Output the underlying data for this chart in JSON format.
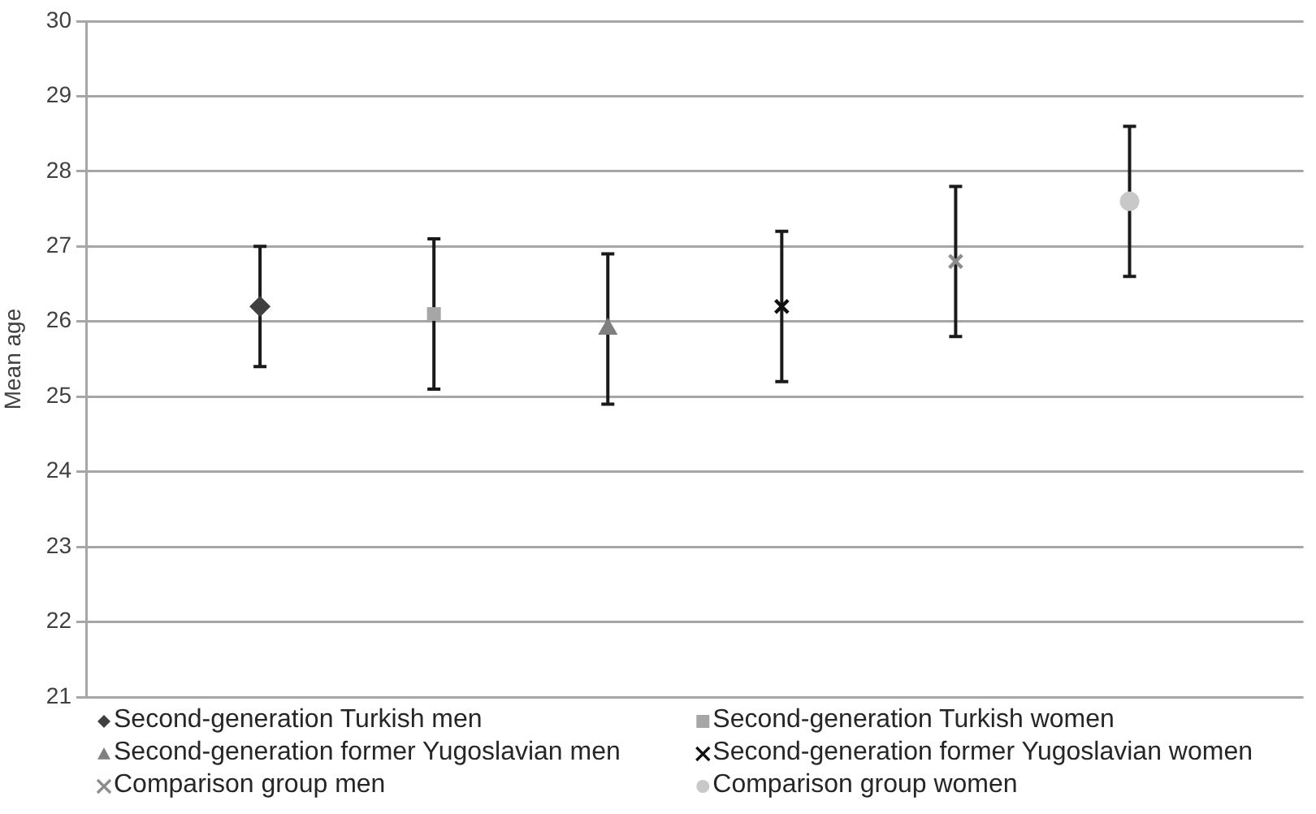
{
  "chart_data": {
    "type": "scatter",
    "ylabel": "Mean age",
    "categories": [
      null,
      null,
      null,
      null,
      null,
      null
    ],
    "ylim": [
      21,
      30
    ],
    "yticks": [
      21,
      22,
      23,
      24,
      25,
      26,
      27,
      28,
      29,
      30
    ],
    "grid": "y",
    "legend": "bottom",
    "tick_labels": "y",
    "series": [
      {
        "name": "Second-generation Turkish men",
        "color": "#404040",
        "marker": "diamond",
        "values": [
          26.2,
          null,
          null,
          null,
          null,
          null
        ],
        "errors": [
          0.8,
          null,
          null,
          null,
          null,
          null
        ]
      },
      {
        "name": "Second-generation Turkish women",
        "color": "#a6a6a6",
        "marker": "square",
        "values": [
          null,
          26.1,
          null,
          null,
          null,
          null
        ],
        "errors": [
          null,
          1.0,
          null,
          null,
          null,
          null
        ]
      },
      {
        "name": "Second-generation former Yugoslavian men",
        "color": "#7f7f7f",
        "marker": "triangle",
        "values": [
          null,
          null,
          25.9,
          null,
          null,
          null
        ],
        "errors": [
          null,
          null,
          1.0,
          null,
          null,
          null
        ]
      },
      {
        "name": "Second-generation former Yugoslavian women",
        "color": "#111111",
        "marker": "cross",
        "values": [
          null,
          null,
          null,
          26.2,
          null,
          null
        ],
        "errors": [
          null,
          null,
          null,
          1.0,
          null,
          null
        ]
      },
      {
        "name": "Comparison group men",
        "color": "#8c8c8c",
        "marker": "cross",
        "values": [
          null,
          null,
          null,
          null,
          26.8,
          null
        ],
        "errors": [
          null,
          null,
          null,
          null,
          1.0,
          null
        ]
      },
      {
        "name": "Comparison group women",
        "color": "#c8c8c8",
        "marker": "circle",
        "values": [
          null,
          null,
          null,
          null,
          null,
          27.6
        ],
        "errors": [
          null,
          null,
          null,
          null,
          null,
          1.0
        ]
      }
    ]
  }
}
